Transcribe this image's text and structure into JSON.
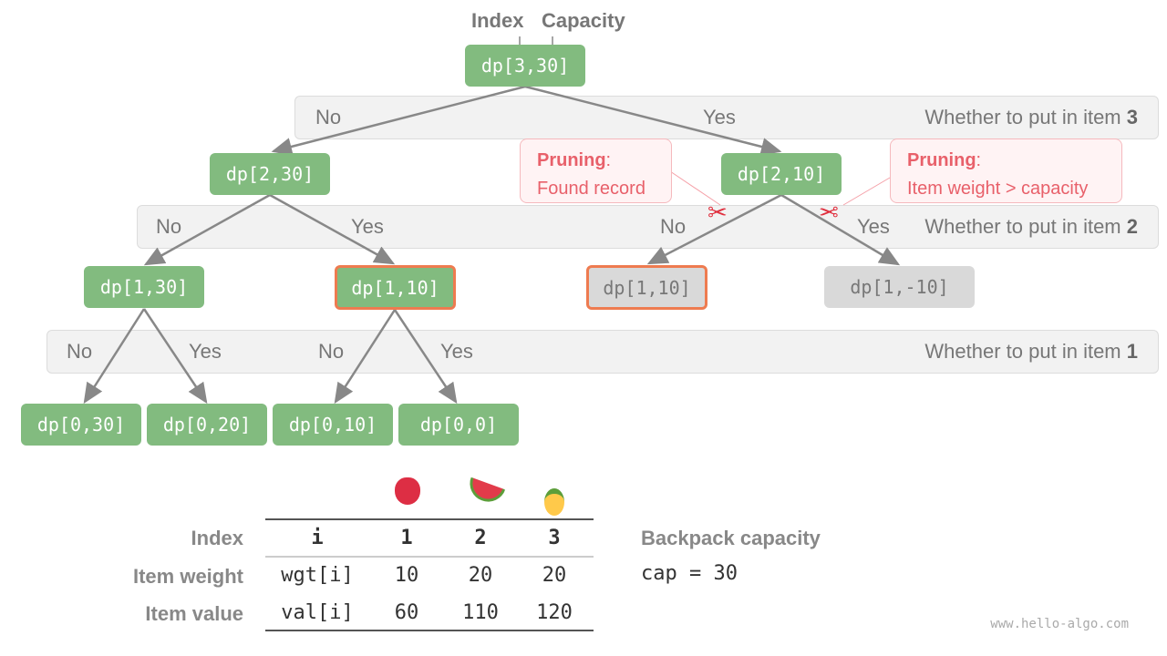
{
  "header": {
    "index_label": "Index",
    "capacity_label": "Capacity"
  },
  "bands": [
    {
      "no": "No",
      "yes": "Yes",
      "desc": "Whether to put in item ",
      "item": "3"
    },
    {
      "no": "No",
      "yes": "Yes",
      "no2": "No",
      "yes2": "Yes",
      "desc": "Whether to put in item ",
      "item": "2"
    },
    {
      "no": "No",
      "yes": "Yes",
      "no2": "No",
      "yes2": "Yes",
      "desc": "Whether to put in item ",
      "item": "1"
    }
  ],
  "nodes": {
    "root": "dp[3,30]",
    "n230": "dp[2,30]",
    "n210": "dp[2,10]",
    "n130": "dp[1,30]",
    "n110": "dp[1,10]",
    "n110b": "dp[1,10]",
    "n1m10": "dp[1,-10]",
    "n030": "dp[0,30]",
    "n020": "dp[0,20]",
    "n010": "dp[0,10]",
    "n00": "dp[0,0]"
  },
  "pruning": [
    {
      "title": "Pruning",
      "text": "Found record"
    },
    {
      "title": "Pruning",
      "text": "Item weight > capacity"
    }
  ],
  "colors": {
    "node": "#82bb7f",
    "pruned_node": "#d9d9d9",
    "highlight": "#ee7b50",
    "prune_text": "#e8606a"
  },
  "table": {
    "icons": [
      "apple-icon",
      "watermelon-icon",
      "pineapple-icon"
    ],
    "rows": [
      {
        "label": "Index",
        "cells": [
          "i",
          "1",
          "2",
          "3"
        ]
      },
      {
        "label": "Item weight",
        "cells": [
          "wgt[i]",
          "10",
          "20",
          "20"
        ]
      },
      {
        "label": "Item value",
        "cells": [
          "val[i]",
          "60",
          "110",
          "120"
        ]
      }
    ]
  },
  "capacity": {
    "title": "Backpack capacity",
    "value": "cap = 30"
  },
  "footer": "www.hello-algo.com"
}
